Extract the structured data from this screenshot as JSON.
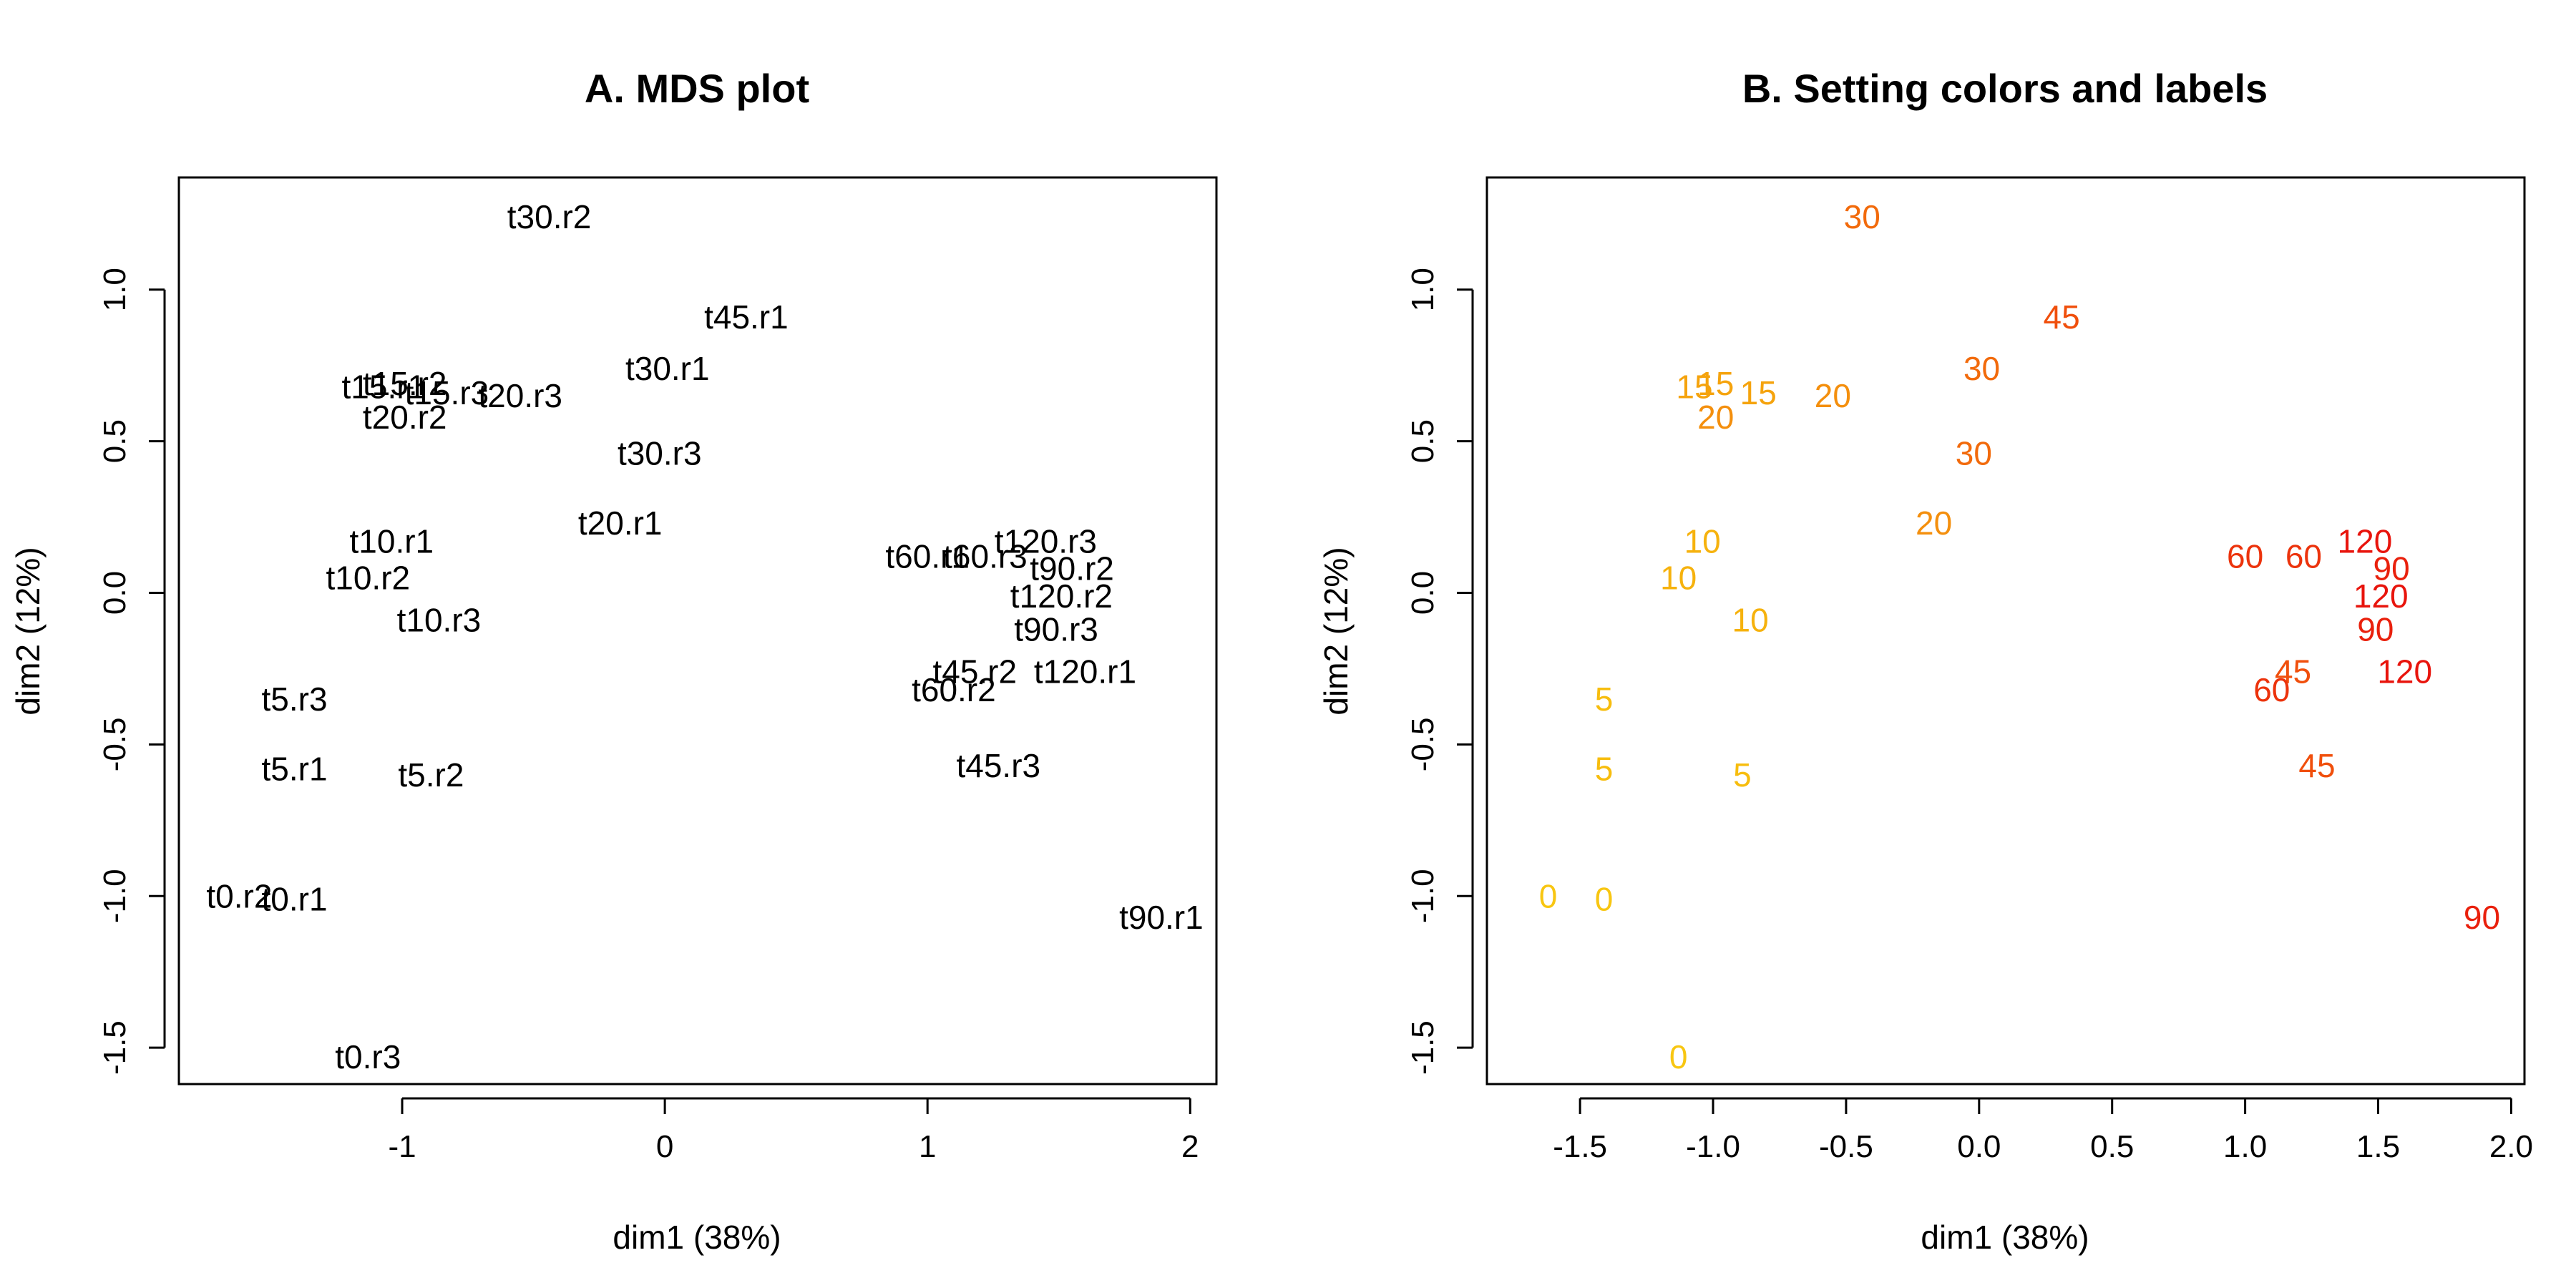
{
  "chart_data": [
    {
      "type": "scatter",
      "title": "A. MDS plot",
      "xlabel": "dim1 (38%)",
      "ylabel": "dim2 (12%)",
      "xlim": [
        -1.85,
        2.1
      ],
      "ylim": [
        -1.62,
        1.37
      ],
      "xticks": [
        -1,
        0,
        1,
        2
      ],
      "xtick_labels": [
        "-1",
        "0",
        "1",
        "2"
      ],
      "yticks": [
        -1.5,
        -1.0,
        -0.5,
        0.0,
        0.5,
        1.0
      ],
      "ytick_labels": [
        "-1.5",
        "-1.0",
        "-0.5",
        "0.0",
        "0.5",
        "1.0"
      ],
      "grid": false,
      "marker": "text label",
      "points": [
        {
          "label": "t30.r2",
          "x": -0.44,
          "y": 1.24,
          "color": "#000000"
        },
        {
          "label": "t45.r1",
          "x": 0.31,
          "y": 0.91,
          "color": "#000000"
        },
        {
          "label": "t30.r1",
          "x": 0.01,
          "y": 0.74,
          "color": "#000000"
        },
        {
          "label": "t15.r1",
          "x": -1.07,
          "y": 0.68,
          "color": "#000000"
        },
        {
          "label": "t15.r2",
          "x": -0.99,
          "y": 0.69,
          "color": "#000000"
        },
        {
          "label": "t15.r3",
          "x": -0.83,
          "y": 0.66,
          "color": "#000000"
        },
        {
          "label": "t20.r3",
          "x": -0.55,
          "y": 0.65,
          "color": "#000000"
        },
        {
          "label": "t20.r2",
          "x": -0.99,
          "y": 0.58,
          "color": "#000000"
        },
        {
          "label": "t30.r3",
          "x": -0.02,
          "y": 0.46,
          "color": "#000000"
        },
        {
          "label": "t20.r1",
          "x": -0.17,
          "y": 0.23,
          "color": "#000000"
        },
        {
          "label": "t10.r1",
          "x": -1.04,
          "y": 0.17,
          "color": "#000000"
        },
        {
          "label": "t10.r2",
          "x": -1.13,
          "y": 0.05,
          "color": "#000000"
        },
        {
          "label": "t10.r3",
          "x": -0.86,
          "y": -0.09,
          "color": "#000000"
        },
        {
          "label": "t120.r3",
          "x": 1.45,
          "y": 0.17,
          "color": "#000000"
        },
        {
          "label": "t60.r1",
          "x": 1.0,
          "y": 0.12,
          "color": "#000000"
        },
        {
          "label": "t60.r3",
          "x": 1.22,
          "y": 0.12,
          "color": "#000000"
        },
        {
          "label": "t90.r2",
          "x": 1.55,
          "y": 0.08,
          "color": "#000000"
        },
        {
          "label": "t120.r2",
          "x": 1.51,
          "y": -0.01,
          "color": "#000000"
        },
        {
          "label": "t90.r3",
          "x": 1.49,
          "y": -0.12,
          "color": "#000000"
        },
        {
          "label": "t45.r2",
          "x": 1.18,
          "y": -0.26,
          "color": "#000000"
        },
        {
          "label": "t120.r1",
          "x": 1.6,
          "y": -0.26,
          "color": "#000000"
        },
        {
          "label": "t60.r2",
          "x": 1.1,
          "y": -0.32,
          "color": "#000000"
        },
        {
          "label": "t5.r3",
          "x": -1.41,
          "y": -0.35,
          "color": "#000000"
        },
        {
          "label": "t5.r1",
          "x": -1.41,
          "y": -0.58,
          "color": "#000000"
        },
        {
          "label": "t5.r2",
          "x": -0.89,
          "y": -0.6,
          "color": "#000000"
        },
        {
          "label": "t45.r3",
          "x": 1.27,
          "y": -0.57,
          "color": "#000000"
        },
        {
          "label": "t0.r2",
          "x": -1.62,
          "y": -1.0,
          "color": "#000000"
        },
        {
          "label": "t0.r1",
          "x": -1.41,
          "y": -1.01,
          "color": "#000000"
        },
        {
          "label": "t90.r1",
          "x": 1.89,
          "y": -1.07,
          "color": "#000000"
        },
        {
          "label": "t0.r3",
          "x": -1.13,
          "y": -1.53,
          "color": "#000000"
        }
      ]
    },
    {
      "type": "scatter",
      "title": "B. Setting colors and labels",
      "xlabel": "dim1 (38%)",
      "ylabel": "dim2 (12%)",
      "xlim": [
        -1.85,
        2.05
      ],
      "ylim": [
        -1.62,
        1.37
      ],
      "xticks": [
        -1.5,
        -1.0,
        -0.5,
        0.0,
        0.5,
        1.0,
        1.5,
        2.0
      ],
      "xtick_labels": [
        "-1.5",
        "-1.0",
        "-0.5",
        "0.0",
        "0.5",
        "1.0",
        "1.5",
        "2.0"
      ],
      "yticks": [
        -1.5,
        -1.0,
        -0.5,
        0.0,
        0.5,
        1.0
      ],
      "ytick_labels": [
        "-1.5",
        "-1.0",
        "-0.5",
        "0.0",
        "0.5",
        "1.0"
      ],
      "grid": false,
      "marker": "text label",
      "points": [
        {
          "label": "30",
          "x": -0.44,
          "y": 1.24,
          "color": "#f26a0b"
        },
        {
          "label": "45",
          "x": 0.31,
          "y": 0.91,
          "color": "#f04f0c"
        },
        {
          "label": "30",
          "x": 0.01,
          "y": 0.74,
          "color": "#f26a0b"
        },
        {
          "label": "15",
          "x": -1.07,
          "y": 0.68,
          "color": "#f5a30d"
        },
        {
          "label": "15",
          "x": -0.99,
          "y": 0.69,
          "color": "#f5a30d"
        },
        {
          "label": "15",
          "x": -0.83,
          "y": 0.66,
          "color": "#f5a30d"
        },
        {
          "label": "20",
          "x": -0.55,
          "y": 0.65,
          "color": "#f48f0d"
        },
        {
          "label": "20",
          "x": -0.99,
          "y": 0.58,
          "color": "#f48f0d"
        },
        {
          "label": "30",
          "x": -0.02,
          "y": 0.46,
          "color": "#f26a0b"
        },
        {
          "label": "20",
          "x": -0.17,
          "y": 0.23,
          "color": "#f48f0d"
        },
        {
          "label": "10",
          "x": -1.04,
          "y": 0.17,
          "color": "#f6b20d"
        },
        {
          "label": "10",
          "x": -1.13,
          "y": 0.05,
          "color": "#f6b20d"
        },
        {
          "label": "10",
          "x": -0.86,
          "y": -0.09,
          "color": "#f6b20d"
        },
        {
          "label": "120",
          "x": 1.45,
          "y": 0.17,
          "color": "#e8140c"
        },
        {
          "label": "60",
          "x": 1.0,
          "y": 0.12,
          "color": "#ec330c"
        },
        {
          "label": "60",
          "x": 1.22,
          "y": 0.12,
          "color": "#ec330c"
        },
        {
          "label": "90",
          "x": 1.55,
          "y": 0.08,
          "color": "#e9200c"
        },
        {
          "label": "120",
          "x": 1.51,
          "y": -0.01,
          "color": "#e8140c"
        },
        {
          "label": "90",
          "x": 1.49,
          "y": -0.12,
          "color": "#e9200c"
        },
        {
          "label": "45",
          "x": 1.18,
          "y": -0.26,
          "color": "#f04f0c"
        },
        {
          "label": "120",
          "x": 1.6,
          "y": -0.26,
          "color": "#e8140c"
        },
        {
          "label": "60",
          "x": 1.1,
          "y": -0.32,
          "color": "#ec330c"
        },
        {
          "label": "5",
          "x": -1.41,
          "y": -0.35,
          "color": "#f7bd0e"
        },
        {
          "label": "5",
          "x": -1.41,
          "y": -0.58,
          "color": "#f7bd0e"
        },
        {
          "label": "5",
          "x": -0.89,
          "y": -0.6,
          "color": "#f7bd0e"
        },
        {
          "label": "45",
          "x": 1.27,
          "y": -0.57,
          "color": "#f04f0c"
        },
        {
          "label": "0",
          "x": -1.62,
          "y": -1.0,
          "color": "#f8c611"
        },
        {
          "label": "0",
          "x": -1.41,
          "y": -1.01,
          "color": "#f8c611"
        },
        {
          "label": "90",
          "x": 1.89,
          "y": -1.07,
          "color": "#e9200c"
        },
        {
          "label": "0",
          "x": -1.13,
          "y": -1.53,
          "color": "#f8c611"
        }
      ]
    }
  ]
}
